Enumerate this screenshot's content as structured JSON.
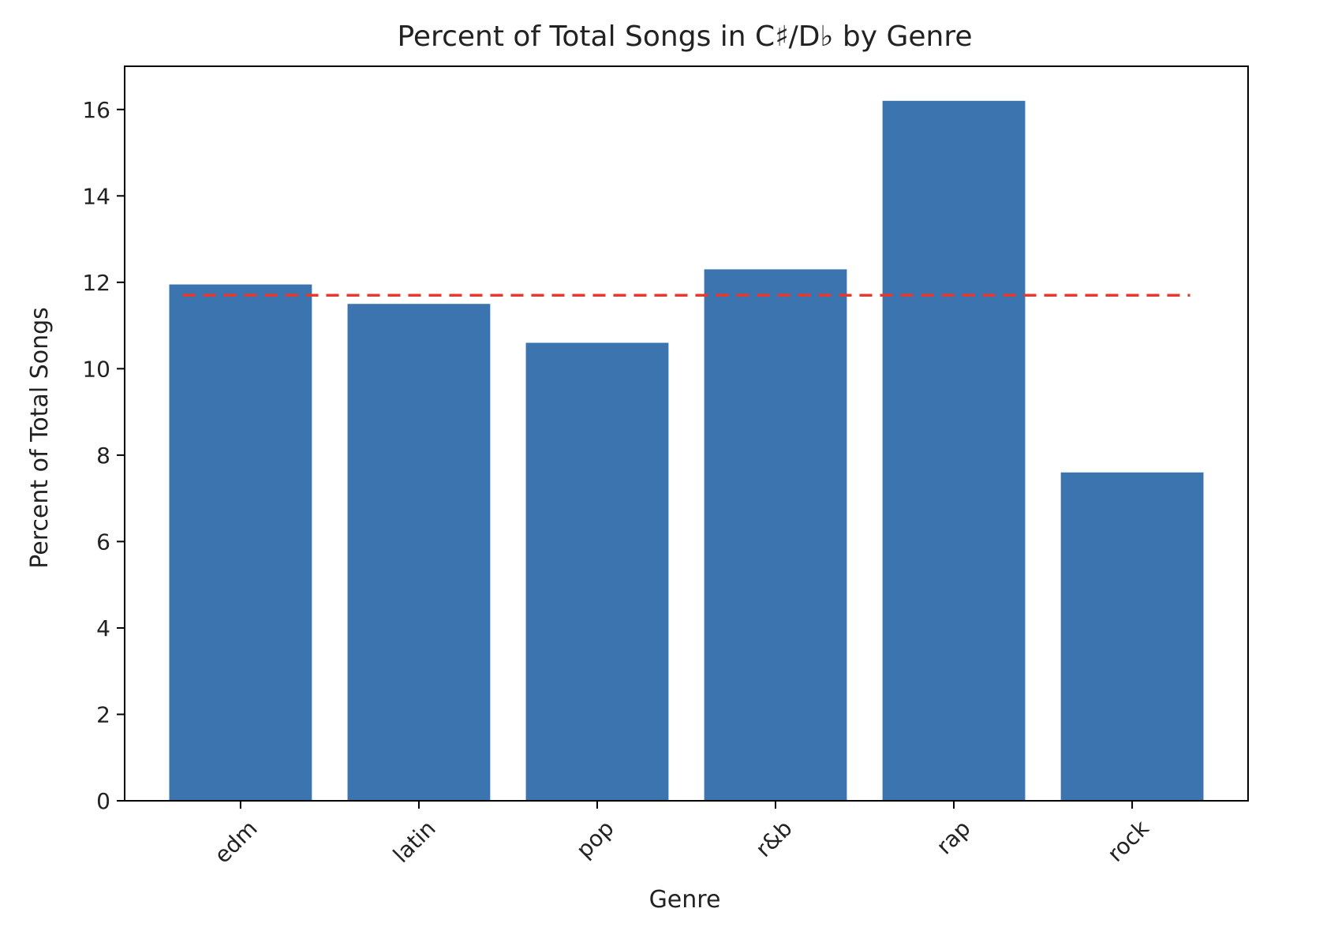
{
  "chart_data": {
    "type": "bar",
    "title": "Percent of Total Songs in C♯/D♭ by Genre",
    "xlabel": "Genre",
    "ylabel": "Percent of Total Songs",
    "categories": [
      "edm",
      "latin",
      "pop",
      "r&b",
      "rap",
      "rock"
    ],
    "values": [
      11.95,
      11.5,
      10.6,
      12.3,
      16.2,
      7.6
    ],
    "ylim": [
      0,
      17
    ],
    "yticks": [
      0,
      2,
      4,
      6,
      8,
      10,
      12,
      14,
      16
    ],
    "reference_line": {
      "value": 11.7,
      "style": "dashed",
      "color": "#e8382d"
    },
    "bar_color": "#3b74ae",
    "grid": false,
    "legend": "none"
  }
}
